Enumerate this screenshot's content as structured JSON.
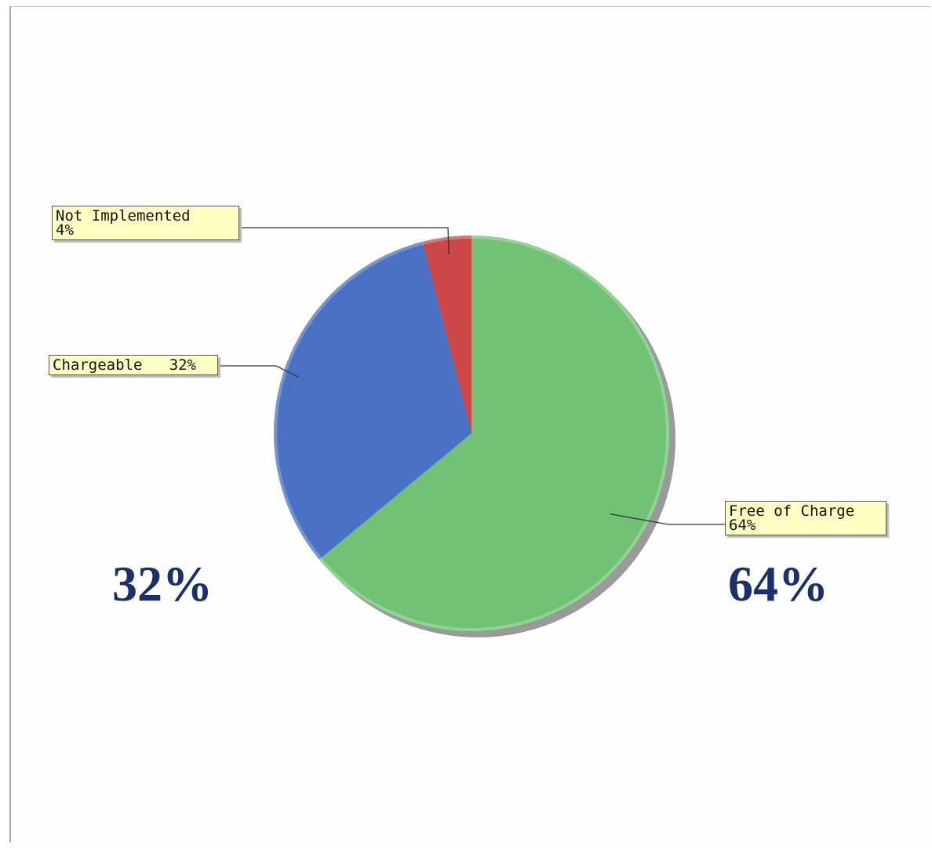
{
  "colors": {
    "free_of_charge": "#71c274",
    "chargeable": "#4a71c3",
    "not_implemented": "#cc4848",
    "label_bg": "#ffffc4",
    "big_text": "#1b2f6b"
  },
  "chart_data": {
    "type": "pie",
    "title": "",
    "slices": [
      {
        "label": "Free of Charge",
        "value": 64,
        "display": "64%"
      },
      {
        "label": "Chargeable",
        "value": 32,
        "display": "32%"
      },
      {
        "label": "Not Implemented",
        "value": 4,
        "display": "4%"
      }
    ],
    "start_angle_deg": 0,
    "direction": "clockwise"
  },
  "labels": {
    "not_implemented": {
      "name": "Not Implemented",
      "pct": "4%"
    },
    "chargeable": {
      "text": "Chargeable   32%"
    },
    "free_of_charge": {
      "name": "Free of Charge",
      "pct": "64%"
    }
  },
  "callouts": {
    "left": "32%",
    "right": "64%"
  }
}
